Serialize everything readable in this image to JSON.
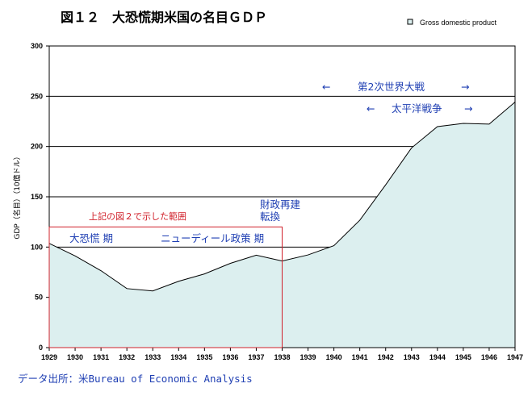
{
  "chart_data": {
    "type": "area",
    "title": "図１２　大恐慌期米国の名目ＧＤＰ",
    "ylabel": "GDP（名目）（10億ドル）",
    "xlabel": "",
    "ylim": [
      0,
      300
    ],
    "yticks": [
      "0",
      "50",
      "100",
      "150",
      "200",
      "250",
      "300"
    ],
    "grid": true,
    "legend_position": "top-right",
    "series": [
      {
        "name": "Gross domestic product",
        "x": [
          "1929",
          "1930",
          "1931",
          "1932",
          "1933",
          "1934",
          "1935",
          "1936",
          "1937",
          "1938",
          "1939",
          "1940",
          "1941",
          "1942",
          "1943",
          "1944",
          "1945",
          "1946",
          "1947"
        ],
        "values": [
          103.6,
          91.2,
          76.5,
          58.7,
          56.4,
          66.0,
          73.3,
          83.8,
          91.9,
          86.1,
          92.2,
          101.4,
          126.7,
          161.9,
          198.6,
          219.8,
          223.0,
          222.3,
          244.2
        ]
      }
    ],
    "colors": {
      "fill": "#dcefef",
      "line": "#000000",
      "highlight": "#d0202a",
      "annotation": "#1f3fb3"
    },
    "annotations": {
      "highlight_label": "上記の図２で示した範囲",
      "depression": "大恐慌 期",
      "new_deal": "ニューディール政策 期",
      "fiscal_line1": "財政再建",
      "fiscal_line2": "転換",
      "ww2": "第2次世界大戦",
      "pacific_war": "太平洋戦争",
      "arrow_left": "←",
      "arrow_right": "→"
    },
    "highlight_range": {
      "from": "1929",
      "to": "1938",
      "y_top": 120
    }
  },
  "source": "データ出所：米Bureau of Economic Analysis"
}
